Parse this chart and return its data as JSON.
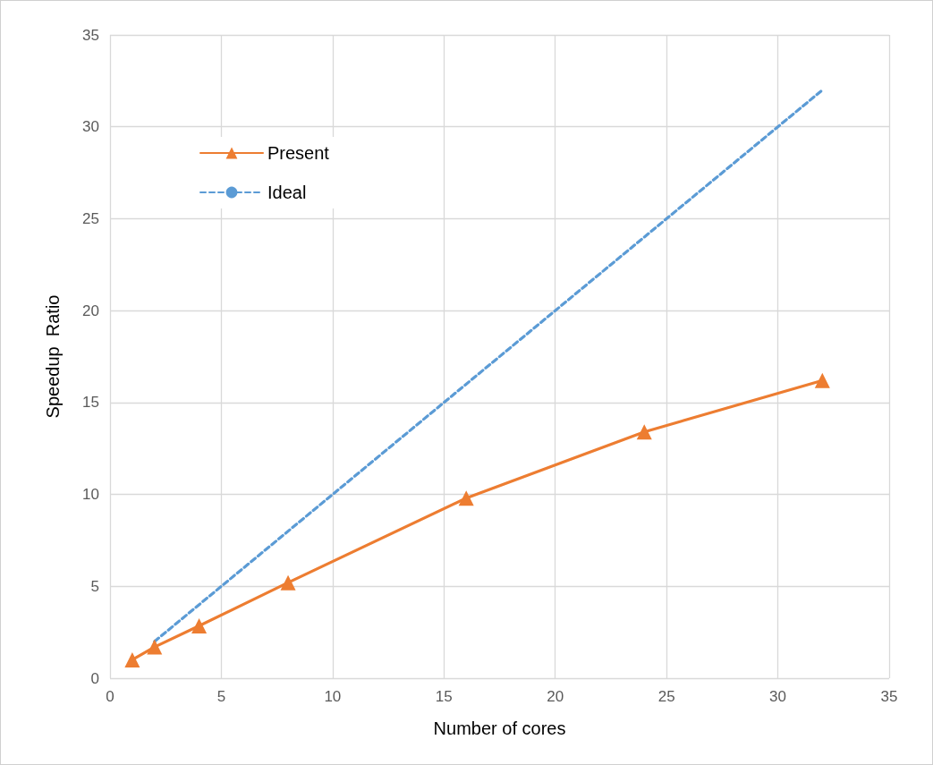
{
  "chart_data": {
    "type": "line",
    "xlabel": "Number of cores",
    "ylabel": "Speedup  Ratio",
    "xlim": [
      0,
      35
    ],
    "xticks": [
      0,
      5,
      10,
      15,
      20,
      25,
      30,
      35
    ],
    "ylim": [
      0,
      35
    ],
    "yticks": [
      0,
      5,
      10,
      15,
      20,
      25,
      30,
      35
    ],
    "grid": true,
    "legend": "top left",
    "series": [
      {
        "name": "Present",
        "color": "#ed7d31",
        "x": [
          1,
          2,
          4,
          8,
          16,
          24,
          32
        ],
        "values": [
          1,
          1.7,
          2.85,
          5.2,
          9.8,
          13.4,
          16.2
        ],
        "marker": "triangle",
        "line_style": "solid"
      },
      {
        "name": "Ideal",
        "color": "#5b9bd5",
        "x": [
          2,
          32
        ],
        "values": [
          2,
          32
        ],
        "marker": "none",
        "line_style": "dashed"
      }
    ]
  }
}
